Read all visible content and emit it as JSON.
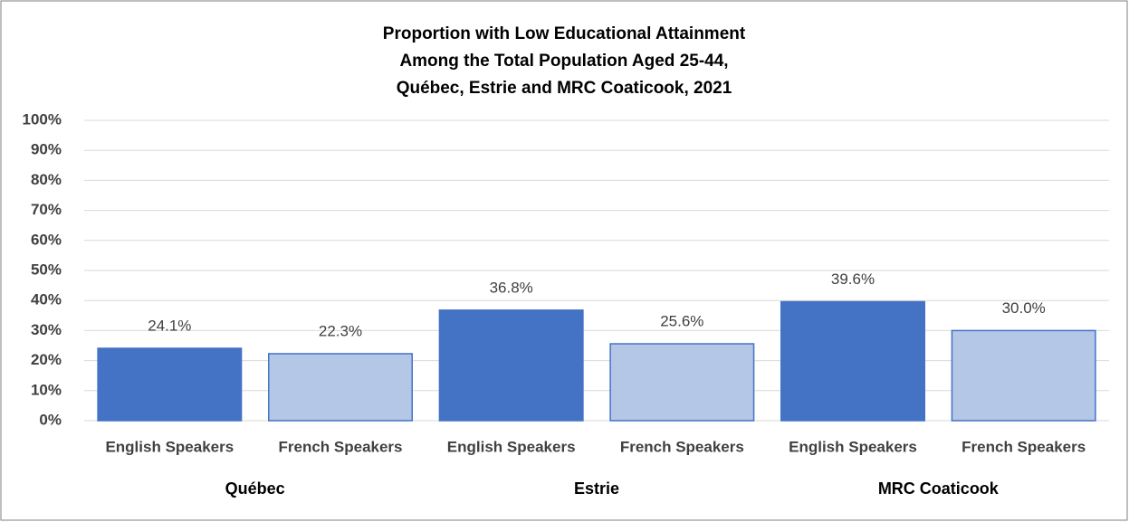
{
  "chart_data": {
    "type": "bar",
    "title": [
      "Proportion with Low Educational  Attainment",
      "Among the Total Population Aged 25-44,",
      "Québec, Estrie and MRC Coaticook,  2021"
    ],
    "categories": [
      "English Speakers",
      "French Speakers",
      "English Speakers",
      "French Speakers",
      "English Speakers",
      "French Speakers"
    ],
    "groups": [
      "Québec",
      "Estrie",
      "MRC Coaticook"
    ],
    "values": [
      24.1,
      22.3,
      36.8,
      25.6,
      39.6,
      30.0
    ],
    "value_labels": [
      "24.1%",
      "22.3%",
      "36.8%",
      "25.6%",
      "39.6%",
      "30.0%"
    ],
    "colors": [
      "#4472c4",
      "#b4c7e7",
      "#4472c4",
      "#b4c7e7",
      "#4472c4",
      "#b4c7e7"
    ],
    "ylim": [
      0,
      100
    ],
    "yticks": [
      {
        "value": 0,
        "label": "0%"
      },
      {
        "value": 10,
        "label": "10%"
      },
      {
        "value": 20,
        "label": "20%"
      },
      {
        "value": 30,
        "label": "30%"
      },
      {
        "value": 40,
        "label": "40%"
      },
      {
        "value": 50,
        "label": "50%"
      },
      {
        "value": 60,
        "label": "60%"
      },
      {
        "value": 70,
        "label": "70%"
      },
      {
        "value": 80,
        "label": "80%"
      },
      {
        "value": 90,
        "label": "90%"
      },
      {
        "value": 100,
        "label": "100%"
      }
    ],
    "grid": true
  }
}
